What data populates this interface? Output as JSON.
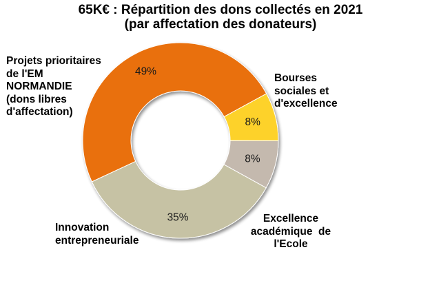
{
  "chart_data": {
    "type": "pie",
    "title_lines": [
      "65K€ : Répartition des dons collectés en 2021",
      "(par affectation des donateurs)"
    ],
    "categories": [
      "Bourses sociales et d'excellence",
      "Excellence académique de l'Ecole",
      "Innovation entrepreneuriale",
      "Projets prioritaires de l'EM NORMANDIE (dons libres d'affectation)"
    ],
    "category_label_lines": [
      [
        "Bourses",
        "sociales et",
        "d'excellence"
      ],
      [
        "Excellence",
        "académique  de",
        "l'Ecole"
      ],
      [
        "Innovation",
        "entrepreneuriale"
      ],
      [
        "Projets prioritaires",
        "de l'EM",
        "NORMANDIE",
        "(dons libres",
        "d'affectation)"
      ]
    ],
    "values": [
      49,
      8,
      8,
      35
    ],
    "value_labels": [
      "49%",
      "8%",
      "8%",
      "35%"
    ],
    "colors": [
      "#E9700E",
      "#FDD22B",
      "#C4B9AE",
      "#C6C2A4"
    ],
    "style": "donut",
    "legend": "none"
  }
}
